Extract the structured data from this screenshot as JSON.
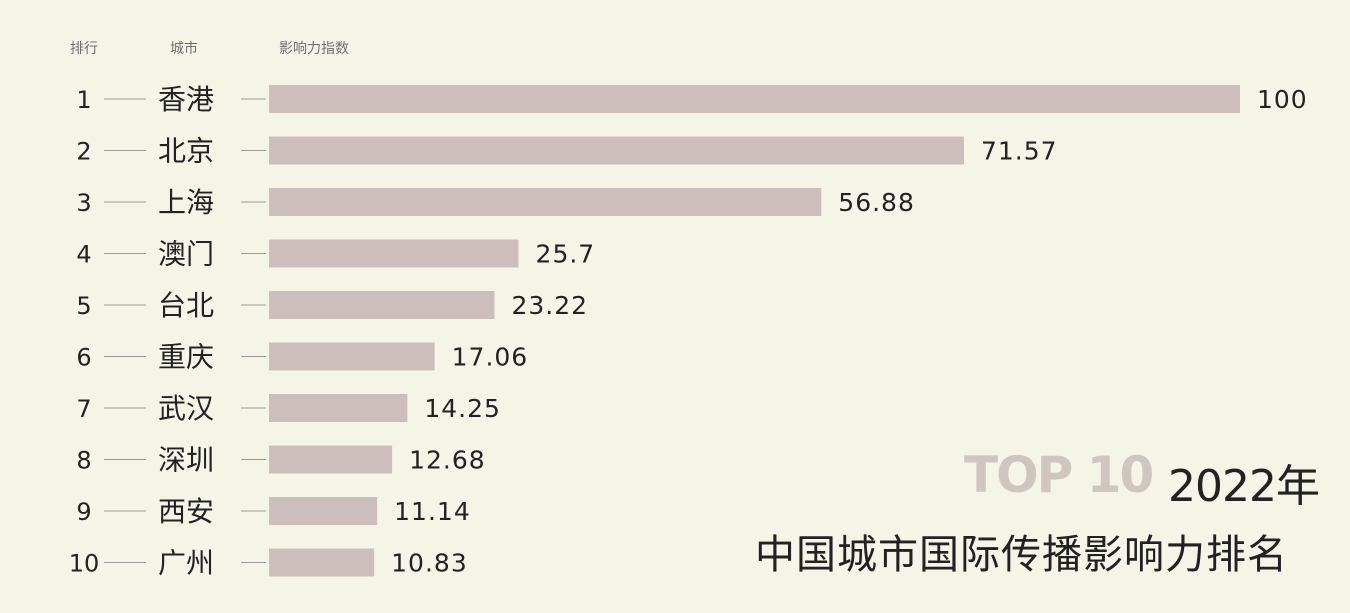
{
  "headers": {
    "rank": "排行",
    "city": "城市",
    "index": "影响力指数"
  },
  "badge": {
    "top": "TOP 10",
    "year": "2022年"
  },
  "chart_data": {
    "type": "bar",
    "orientation": "horizontal",
    "title": "中国城市国际传播影响力排名",
    "xlim": [
      0,
      100
    ],
    "ranks": [
      "1",
      "2",
      "3",
      "4",
      "5",
      "6",
      "7",
      "8",
      "9",
      "10"
    ],
    "categories": [
      "香港",
      "北京",
      "上海",
      "澳门",
      "台北",
      "重庆",
      "武汉",
      "深圳",
      "西安",
      "广州"
    ],
    "values": [
      100,
      71.57,
      56.88,
      25.7,
      23.22,
      17.06,
      14.25,
      12.68,
      11.14,
      10.83
    ],
    "value_labels": [
      "100",
      "71.57",
      "56.88",
      "25.7",
      "23.22",
      "17.06",
      "14.25",
      "12.68",
      "11.14",
      "10.83"
    ],
    "bar_color": "#ccbfbb",
    "grid": false,
    "legend": "none"
  }
}
